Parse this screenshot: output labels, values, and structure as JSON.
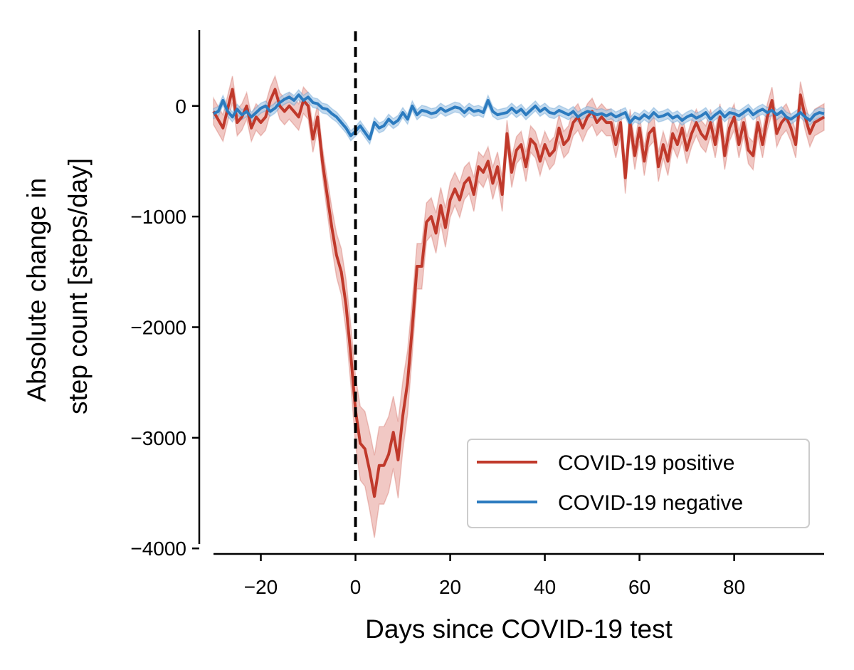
{
  "chart_data": {
    "type": "line",
    "xlabel": "Days since COVID-19 test",
    "ylabel_lines": [
      "Absolute change in",
      "step count [steps/day]"
    ],
    "xlim": [
      -30,
      99
    ],
    "ylim": [
      -4050,
      700
    ],
    "x_ticks": [
      -20,
      0,
      20,
      40,
      60,
      80
    ],
    "x_tick_labels": [
      "−20",
      "0",
      "20",
      "40",
      "60",
      "80"
    ],
    "y_ticks": [
      0,
      -1000,
      -2000,
      -3000,
      -4000
    ],
    "y_tick_labels": [
      "0",
      "−1000",
      "−2000",
      "−3000",
      "−4000"
    ],
    "reference_line": {
      "x": 0,
      "style": "dashed",
      "color": "#000000"
    },
    "legend_position": "lower right",
    "series": [
      {
        "name": "COVID-19 positive",
        "color": "#c0392b",
        "band_color": "#e8a49c",
        "points": [
          [
            -30,
            -50
          ],
          [
            -28,
            -200
          ],
          [
            -26,
            150
          ],
          [
            -25,
            -150
          ],
          [
            -24,
            -100
          ],
          [
            -23,
            0
          ],
          [
            -22,
            -200
          ],
          [
            -21,
            -100
          ],
          [
            -20,
            -150
          ],
          [
            -19,
            -100
          ],
          [
            -18,
            50
          ],
          [
            -17,
            150
          ],
          [
            -16,
            0
          ],
          [
            -15,
            -50
          ],
          [
            -14,
            0
          ],
          [
            -13,
            -50
          ],
          [
            -12,
            -100
          ],
          [
            -11,
            50
          ],
          [
            -10,
            0
          ],
          [
            -9,
            -300
          ],
          [
            -8,
            -100
          ],
          [
            -7,
            -500
          ],
          [
            -6,
            -800
          ],
          [
            -5,
            -1100
          ],
          [
            -4,
            -1350
          ],
          [
            -3,
            -1500
          ],
          [
            -2,
            -1800
          ],
          [
            -1,
            -2250
          ],
          [
            0,
            -2750
          ],
          [
            1,
            -3050
          ],
          [
            2,
            -3100
          ],
          [
            3,
            -3300
          ],
          [
            4,
            -3530
          ],
          [
            5,
            -3250
          ],
          [
            6,
            -3250
          ],
          [
            7,
            -3150
          ],
          [
            8,
            -2950
          ],
          [
            9,
            -3200
          ],
          [
            10,
            -2800
          ],
          [
            11,
            -2500
          ],
          [
            12,
            -2000
          ],
          [
            13,
            -1450
          ],
          [
            14,
            -1450
          ],
          [
            15,
            -1050
          ],
          [
            16,
            -1000
          ],
          [
            17,
            -1150
          ],
          [
            18,
            -900
          ],
          [
            19,
            -1100
          ],
          [
            20,
            -850
          ],
          [
            21,
            -750
          ],
          [
            22,
            -850
          ],
          [
            23,
            -700
          ],
          [
            24,
            -650
          ],
          [
            25,
            -800
          ],
          [
            26,
            -550
          ],
          [
            27,
            -600
          ],
          [
            28,
            -500
          ],
          [
            29,
            -700
          ],
          [
            30,
            -550
          ],
          [
            31,
            -800
          ],
          [
            32,
            -250
          ],
          [
            33,
            -600
          ],
          [
            34,
            -400
          ],
          [
            35,
            -350
          ],
          [
            36,
            -550
          ],
          [
            37,
            -300
          ],
          [
            38,
            -350
          ],
          [
            39,
            -500
          ],
          [
            40,
            -350
          ],
          [
            41,
            -450
          ],
          [
            42,
            -400
          ],
          [
            43,
            -200
          ],
          [
            44,
            -350
          ],
          [
            45,
            -300
          ],
          [
            46,
            -150
          ],
          [
            47,
            -100
          ],
          [
            48,
            -200
          ],
          [
            49,
            -100
          ],
          [
            50,
            -50
          ],
          [
            51,
            -150
          ],
          [
            52,
            -100
          ],
          [
            53,
            -150
          ],
          [
            54,
            -150
          ],
          [
            55,
            -350
          ],
          [
            56,
            -150
          ],
          [
            57,
            -650
          ],
          [
            58,
            -150
          ],
          [
            59,
            -450
          ],
          [
            60,
            -200
          ],
          [
            61,
            -500
          ],
          [
            62,
            -250
          ],
          [
            63,
            -200
          ],
          [
            64,
            -550
          ],
          [
            65,
            -350
          ],
          [
            66,
            -500
          ],
          [
            67,
            -250
          ],
          [
            68,
            -350
          ],
          [
            69,
            -200
          ],
          [
            70,
            -400
          ],
          [
            71,
            -250
          ],
          [
            72,
            -150
          ],
          [
            73,
            -250
          ],
          [
            74,
            -300
          ],
          [
            75,
            -150
          ],
          [
            76,
            -350
          ],
          [
            77,
            -100
          ],
          [
            78,
            -450
          ],
          [
            79,
            -200
          ],
          [
            80,
            -100
          ],
          [
            81,
            -350
          ],
          [
            82,
            -150
          ],
          [
            83,
            -400
          ],
          [
            84,
            -450
          ],
          [
            85,
            -150
          ],
          [
            86,
            -350
          ],
          [
            87,
            -100
          ],
          [
            88,
            50
          ],
          [
            89,
            -250
          ],
          [
            90,
            -150
          ],
          [
            91,
            -100
          ],
          [
            92,
            -200
          ],
          [
            93,
            -350
          ],
          [
            94,
            100
          ],
          [
            95,
            -100
          ],
          [
            96,
            -250
          ],
          [
            97,
            -150
          ],
          [
            99,
            -100
          ]
        ]
      },
      {
        "name": "COVID-19 negative",
        "color": "#2c7bbf",
        "band_color": "#a8cbe8",
        "points": [
          [
            -30,
            -70
          ],
          [
            -29,
            -50
          ],
          [
            -28,
            50
          ],
          [
            -27,
            -50
          ],
          [
            -26,
            -100
          ],
          [
            -25,
            -30
          ],
          [
            -24,
            -80
          ],
          [
            -23,
            -50
          ],
          [
            -22,
            -100
          ],
          [
            -21,
            -60
          ],
          [
            -20,
            -20
          ],
          [
            -19,
            0
          ],
          [
            -18,
            -50
          ],
          [
            -17,
            -20
          ],
          [
            -16,
            30
          ],
          [
            -15,
            60
          ],
          [
            -14,
            80
          ],
          [
            -13,
            50
          ],
          [
            -12,
            100
          ],
          [
            -11,
            50
          ],
          [
            -10,
            80
          ],
          [
            -9,
            30
          ],
          [
            -8,
            20
          ],
          [
            -7,
            -20
          ],
          [
            -6,
            -30
          ],
          [
            -5,
            -70
          ],
          [
            -4,
            -100
          ],
          [
            -3,
            -150
          ],
          [
            -2,
            -200
          ],
          [
            -1,
            -270
          ],
          [
            0,
            -230
          ],
          [
            1,
            -180
          ],
          [
            2,
            -240
          ],
          [
            3,
            -300
          ],
          [
            4,
            -150
          ],
          [
            5,
            -200
          ],
          [
            6,
            -180
          ],
          [
            7,
            -120
          ],
          [
            8,
            -160
          ],
          [
            9,
            -130
          ],
          [
            10,
            -60
          ],
          [
            11,
            -120
          ],
          [
            12,
            0
          ],
          [
            13,
            -80
          ],
          [
            14,
            -40
          ],
          [
            15,
            -50
          ],
          [
            16,
            -70
          ],
          [
            17,
            -60
          ],
          [
            18,
            -20
          ],
          [
            19,
            -50
          ],
          [
            20,
            -30
          ],
          [
            21,
            -10
          ],
          [
            22,
            -20
          ],
          [
            23,
            -60
          ],
          [
            24,
            -20
          ],
          [
            25,
            -50
          ],
          [
            26,
            -40
          ],
          [
            27,
            -60
          ],
          [
            28,
            50
          ],
          [
            29,
            -50
          ],
          [
            30,
            -80
          ],
          [
            31,
            -70
          ],
          [
            32,
            -60
          ],
          [
            33,
            -20
          ],
          [
            34,
            -60
          ],
          [
            35,
            -30
          ],
          [
            36,
            -80
          ],
          [
            37,
            -40
          ],
          [
            38,
            0
          ],
          [
            39,
            -50
          ],
          [
            40,
            -20
          ],
          [
            41,
            -60
          ],
          [
            42,
            -70
          ],
          [
            43,
            -40
          ],
          [
            44,
            -60
          ],
          [
            45,
            -80
          ],
          [
            46,
            -50
          ],
          [
            47,
            -100
          ],
          [
            48,
            -70
          ],
          [
            49,
            -50
          ],
          [
            50,
            -60
          ],
          [
            51,
            -80
          ],
          [
            52,
            -70
          ],
          [
            53,
            -90
          ],
          [
            54,
            -70
          ],
          [
            55,
            -100
          ],
          [
            56,
            -80
          ],
          [
            57,
            -60
          ],
          [
            58,
            -150
          ],
          [
            59,
            -100
          ],
          [
            60,
            -120
          ],
          [
            61,
            -80
          ],
          [
            62,
            -110
          ],
          [
            63,
            -60
          ],
          [
            64,
            -100
          ],
          [
            65,
            -90
          ],
          [
            66,
            -70
          ],
          [
            67,
            -110
          ],
          [
            68,
            -90
          ],
          [
            69,
            -130
          ],
          [
            70,
            -100
          ],
          [
            71,
            -80
          ],
          [
            72,
            -110
          ],
          [
            73,
            -90
          ],
          [
            74,
            -60
          ],
          [
            75,
            -120
          ],
          [
            76,
            -80
          ],
          [
            77,
            -50
          ],
          [
            78,
            -100
          ],
          [
            79,
            -60
          ],
          [
            80,
            -70
          ],
          [
            81,
            -90
          ],
          [
            82,
            -60
          ],
          [
            83,
            -30
          ],
          [
            84,
            -80
          ],
          [
            85,
            -50
          ],
          [
            86,
            -30
          ],
          [
            87,
            -60
          ],
          [
            88,
            -40
          ],
          [
            89,
            -80
          ],
          [
            90,
            -50
          ],
          [
            91,
            -100
          ],
          [
            92,
            -120
          ],
          [
            93,
            -90
          ],
          [
            94,
            -60
          ],
          [
            95,
            -100
          ],
          [
            96,
            -130
          ],
          [
            97,
            -80
          ],
          [
            98,
            -60
          ],
          [
            99,
            -70
          ]
        ]
      }
    ]
  }
}
